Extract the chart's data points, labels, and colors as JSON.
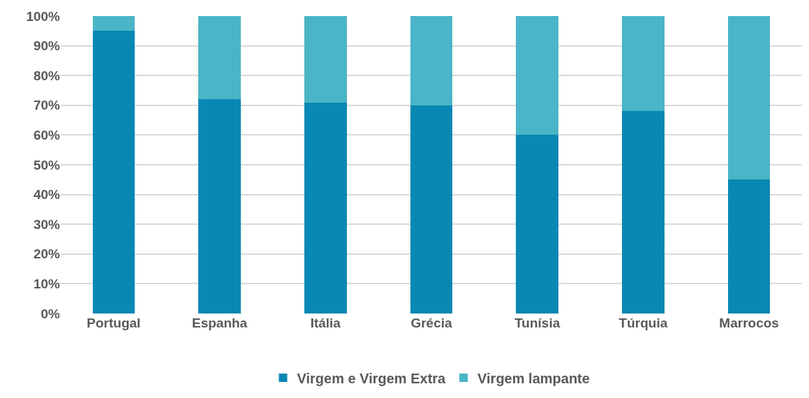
{
  "chart_data": {
    "type": "bar",
    "stacked": true,
    "categories": [
      "Portugal",
      "Espanha",
      "Itália",
      "Grécia",
      "Tunísia",
      "Túrquia",
      "Marrocos"
    ],
    "series": [
      {
        "name": "Virgem e Virgem Extra",
        "color": "#0a88b4",
        "values": [
          95,
          72,
          71,
          70,
          60,
          68,
          45
        ]
      },
      {
        "name": "Virgem lampante",
        "color": "#4ab5c6",
        "values": [
          5,
          28,
          29,
          30,
          40,
          32,
          55
        ]
      }
    ],
    "ylim": [
      0,
      100
    ],
    "yticks": [
      {
        "value": 0,
        "label": "0%"
      },
      {
        "value": 10,
        "label": "10%"
      },
      {
        "value": 20,
        "label": "20%"
      },
      {
        "value": 30,
        "label": "30%"
      },
      {
        "value": 40,
        "label": "40%"
      },
      {
        "value": 50,
        "label": "50%"
      },
      {
        "value": 60,
        "label": "60%"
      },
      {
        "value": 70,
        "label": "70%"
      },
      {
        "value": 80,
        "label": "80%"
      },
      {
        "value": 90,
        "label": "90%"
      },
      {
        "value": 100,
        "label": "100%"
      }
    ],
    "grid": "y",
    "legend": "bottom"
  }
}
